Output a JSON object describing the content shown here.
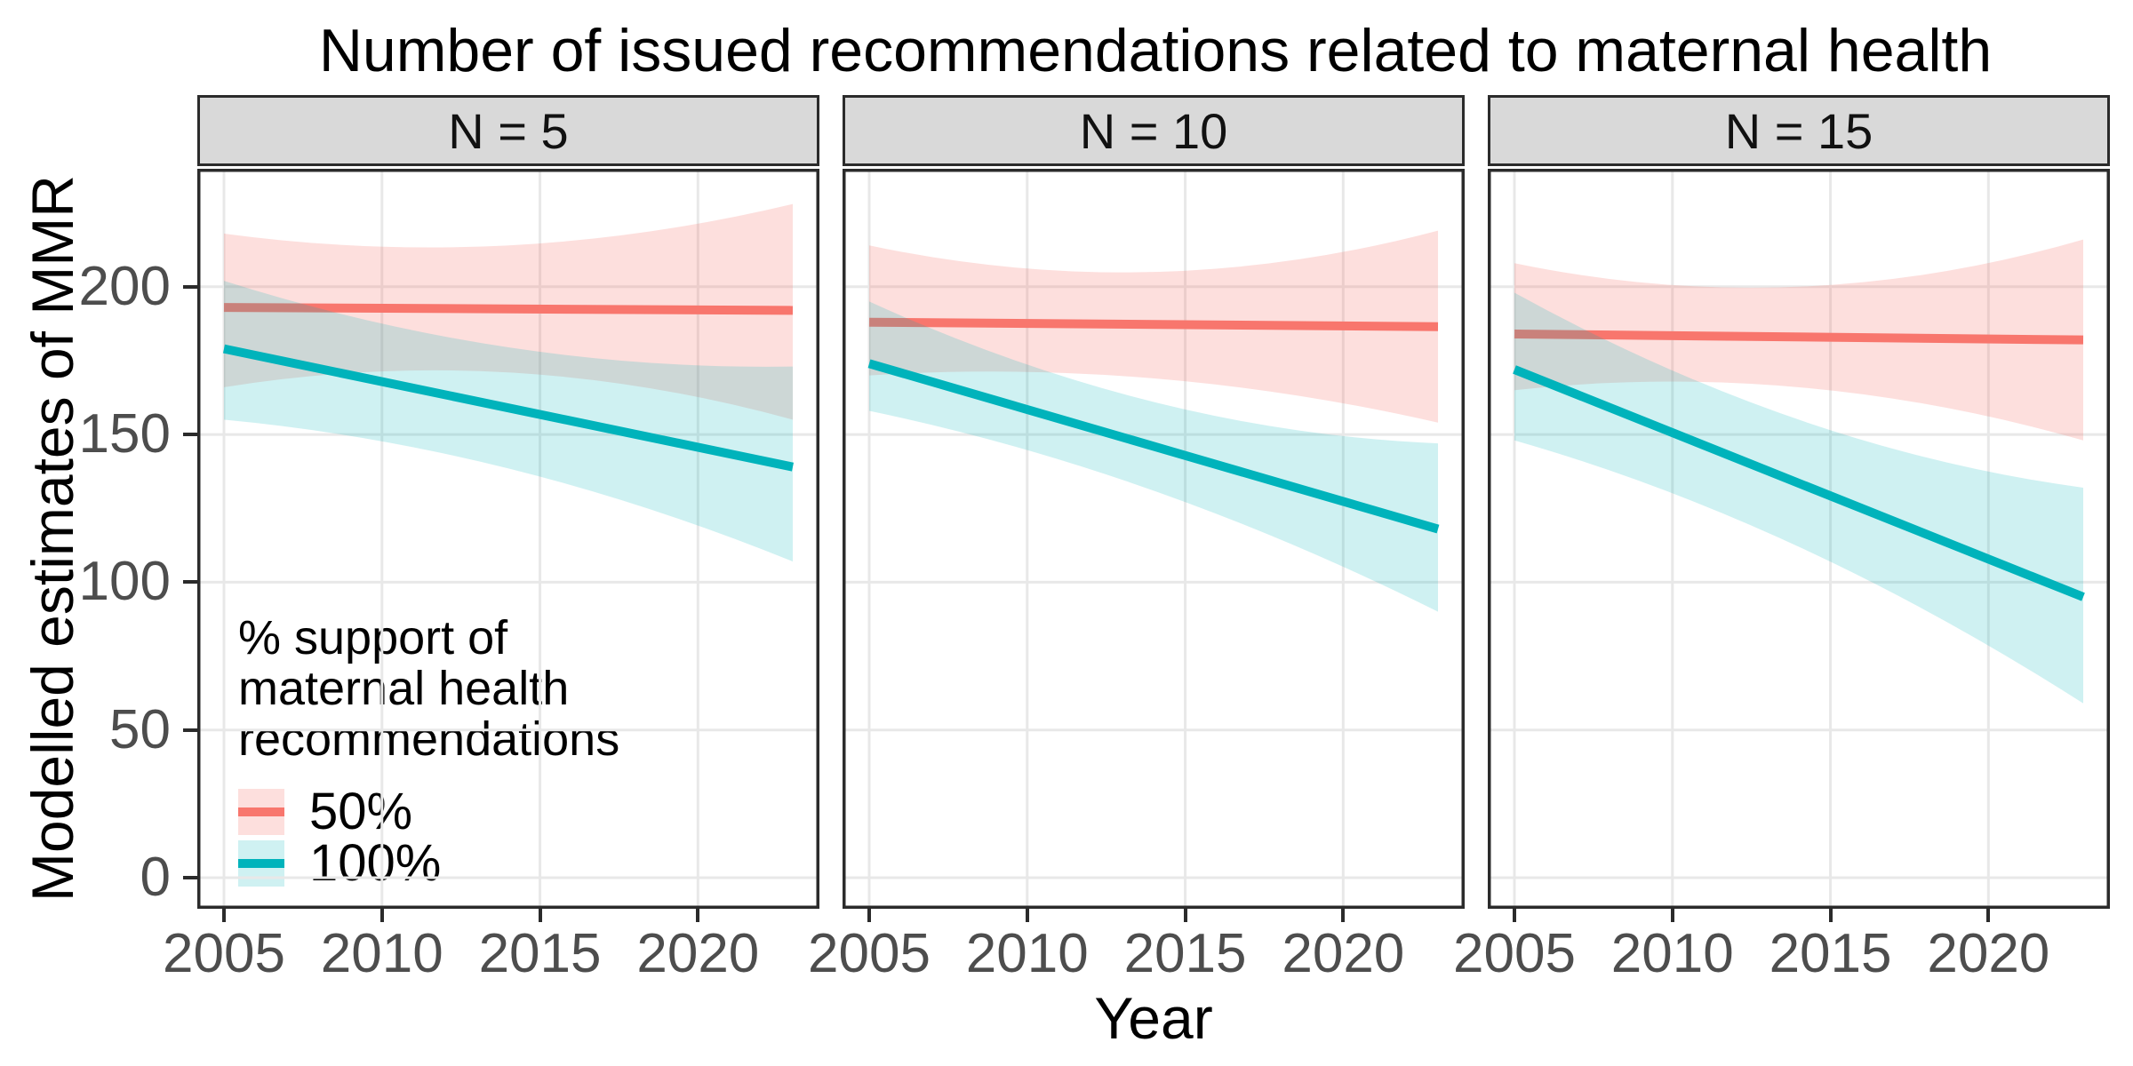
{
  "title": "Number of issued recommendations related to maternal health",
  "axes": {
    "x_title": "Year",
    "y_title": "Modelled estimates of MMR",
    "x_ticks": [
      "2005",
      "2010",
      "2015",
      "2020"
    ],
    "y_ticks": [
      "0",
      "50",
      "100",
      "150",
      "200"
    ]
  },
  "legend": {
    "title_lines": [
      "% support of",
      "maternal health",
      "recommendations"
    ],
    "entries": [
      {
        "label": "50%",
        "line_color": "#F8766D",
        "fill_color": "rgba(248,118,109,0.23)"
      },
      {
        "label": "100%",
        "line_color": "#00B3BB",
        "fill_color": "rgba(0,179,187,0.19)"
      }
    ]
  },
  "colors": {
    "red_line": "#F8766D",
    "teal_line": "#00B3BB",
    "red_ribbon": "rgba(248,118,109,0.23)",
    "teal_ribbon": "rgba(0,179,187,0.19)",
    "gridline": "#E8E8E8",
    "strip_bg": "#D9D9D9",
    "panel_border": "#2B2B2B",
    "tick_label": "#4D4D4D"
  },
  "chart_data": {
    "type": "line",
    "title": "Number of issued recommendations related to maternal health",
    "xlabel": "Year",
    "ylabel": "Modelled estimates of MMR",
    "x_domain": [
      2005,
      2023
    ],
    "ylim": [
      -11,
      240
    ],
    "x_ticks": [
      2005,
      2010,
      2015,
      2020
    ],
    "y_ticks": [
      0,
      50,
      100,
      150,
      200
    ],
    "legend_title": "% support of maternal health recommendations",
    "legend_position": "inside bottom-left of first panel",
    "grid": "major only",
    "facets": [
      {
        "label": "N = 5",
        "series": [
          {
            "name": "50%",
            "x": [
              2005,
              2014,
              2023
            ],
            "y": [
              193,
              192.5,
              192
            ],
            "ci_upper": [
              218,
              214,
              228
            ],
            "ci_lower": [
              166,
              171,
              155
            ]
          },
          {
            "name": "100%",
            "x": [
              2005,
              2014,
              2023
            ],
            "y": [
              179,
              159,
              139
            ],
            "ci_upper": [
              202,
              179.5,
              173
            ],
            "ci_lower": [
              155,
              138.5,
              107
            ]
          }
        ]
      },
      {
        "label": "N = 10",
        "series": [
          {
            "name": "50%",
            "x": [
              2005,
              2014,
              2023
            ],
            "y": [
              188,
              187.2,
              186.5
            ],
            "ci_upper": [
              214,
              205,
              219
            ],
            "ci_lower": [
              170,
              169,
              154
            ]
          },
          {
            "name": "100%",
            "x": [
              2005,
              2014,
              2023
            ],
            "y": [
              174,
              146,
              118
            ],
            "ci_upper": [
              195,
              161,
              147
            ],
            "ci_lower": [
              158,
              131,
              90
            ]
          }
        ]
      },
      {
        "label": "N = 15",
        "series": [
          {
            "name": "50%",
            "x": [
              2005,
              2014,
              2023
            ],
            "y": [
              184,
              183,
              182
            ],
            "ci_upper": [
              208,
              200,
              216
            ],
            "ci_lower": [
              165,
              166,
              148
            ]
          },
          {
            "name": "100%",
            "x": [
              2005,
              2014,
              2023
            ],
            "y": [
              172,
              133.5,
              95
            ],
            "ci_upper": [
              198,
              155,
              132
            ],
            "ci_lower": [
              148,
              112,
              59
            ]
          }
        ]
      }
    ]
  }
}
